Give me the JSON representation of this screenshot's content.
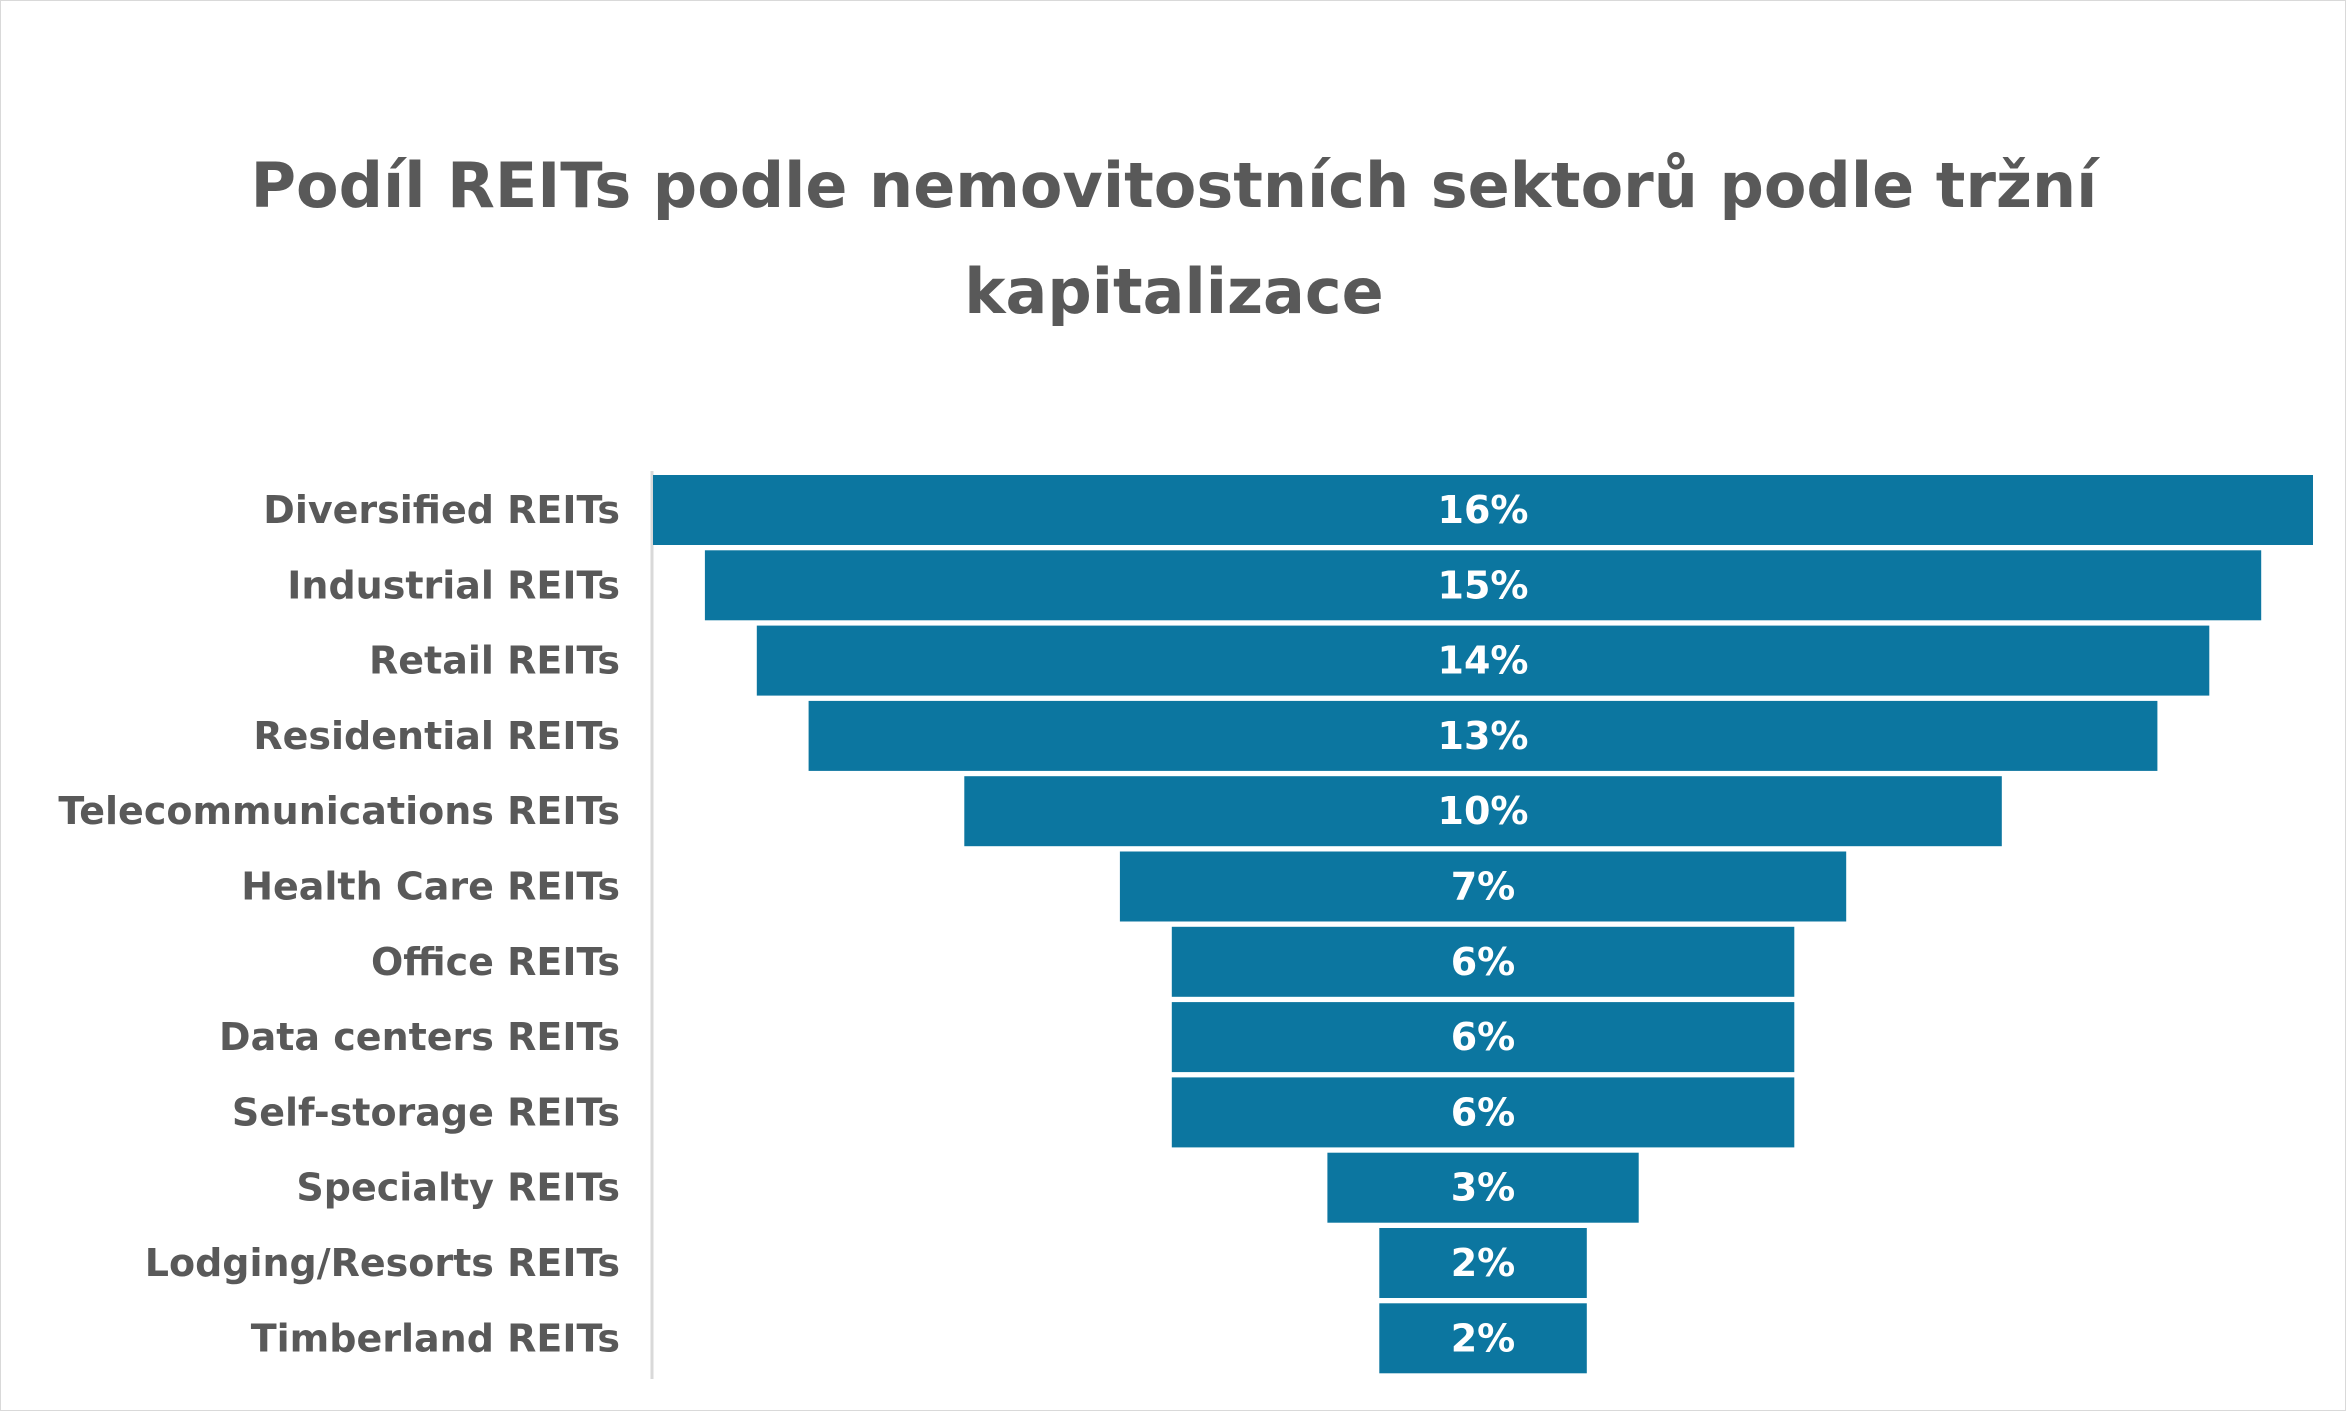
{
  "chart_data": {
    "type": "bar",
    "subtype": "funnel",
    "orientation": "horizontal",
    "title": "Podíl REITs podle nemovitostních sektorů podle tržní kapitalizace",
    "xlabel": "",
    "ylabel": "",
    "unit": "%",
    "grid": false,
    "legend": "none",
    "bar_color": "#0c76a0",
    "categories": [
      "Diversified REITs",
      "Industrial REITs",
      "Retail REITs",
      "Residential REITs",
      "Telecommunications REITs",
      "Health Care REITs",
      "Office REITs",
      "Data centers REITs",
      "Self-storage REITs",
      "Specialty REITs",
      "Lodging/Resorts REITs",
      "Timberland REITs"
    ],
    "values": [
      16,
      15,
      14,
      13,
      10,
      7,
      6,
      6,
      6,
      3,
      2,
      2
    ],
    "data_labels": [
      "16%",
      "15%",
      "14%",
      "13%",
      "10%",
      "7%",
      "6%",
      "6%",
      "6%",
      "3%",
      "2%",
      "2%"
    ]
  }
}
